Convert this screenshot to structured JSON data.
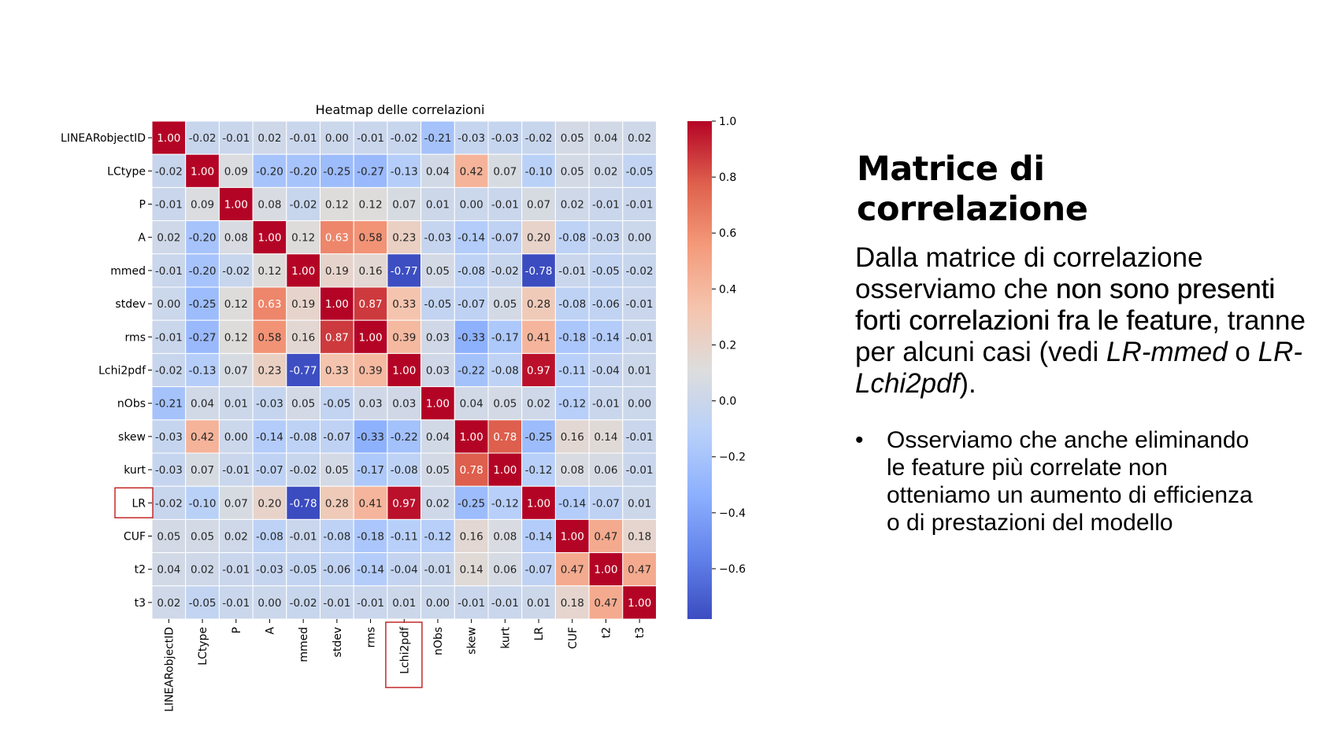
{
  "chart_data": {
    "type": "heatmap",
    "title": "Heatmap delle correlazioni",
    "labels": [
      "LINEARobjectID",
      "LCtype",
      "P",
      "A",
      "mmed",
      "stdev",
      "rms",
      "Lchi2pdf",
      "nObs",
      "skew",
      "kurt",
      "LR",
      "CUF",
      "t2",
      "t3"
    ],
    "matrix": [
      [
        1.0,
        -0.02,
        -0.01,
        0.02,
        -0.01,
        0.0,
        -0.01,
        -0.02,
        -0.21,
        -0.03,
        -0.03,
        -0.02,
        0.05,
        0.04,
        0.02
      ],
      [
        -0.02,
        1.0,
        0.09,
        -0.2,
        -0.2,
        -0.25,
        -0.27,
        -0.13,
        0.04,
        0.42,
        0.07,
        -0.1,
        0.05,
        0.02,
        -0.05
      ],
      [
        -0.01,
        0.09,
        1.0,
        0.08,
        -0.02,
        0.12,
        0.12,
        0.07,
        0.01,
        0.0,
        -0.01,
        0.07,
        0.02,
        -0.01,
        -0.01
      ],
      [
        0.02,
        -0.2,
        0.08,
        1.0,
        0.12,
        0.63,
        0.58,
        0.23,
        -0.03,
        -0.14,
        -0.07,
        0.2,
        -0.08,
        -0.03,
        -0.0
      ],
      [
        -0.01,
        -0.2,
        -0.02,
        0.12,
        1.0,
        0.19,
        0.16,
        -0.77,
        0.05,
        -0.08,
        -0.02,
        -0.78,
        -0.01,
        -0.05,
        -0.02
      ],
      [
        0.0,
        -0.25,
        0.12,
        0.63,
        0.19,
        1.0,
        0.87,
        0.33,
        -0.05,
        -0.07,
        0.05,
        0.28,
        -0.08,
        -0.06,
        -0.01
      ],
      [
        -0.01,
        -0.27,
        0.12,
        0.58,
        0.16,
        0.87,
        1.0,
        0.39,
        0.03,
        -0.33,
        -0.17,
        0.41,
        -0.18,
        -0.14,
        -0.01
      ],
      [
        -0.02,
        -0.13,
        0.07,
        0.23,
        -0.77,
        0.33,
        0.39,
        1.0,
        0.03,
        -0.22,
        -0.08,
        0.97,
        -0.11,
        -0.04,
        0.01
      ],
      [
        -0.21,
        0.04,
        0.01,
        -0.03,
        0.05,
        -0.05,
        0.03,
        0.03,
        1.0,
        0.04,
        0.05,
        0.02,
        -0.12,
        -0.01,
        0.0
      ],
      [
        -0.03,
        0.42,
        0.0,
        -0.14,
        -0.08,
        -0.07,
        -0.33,
        -0.22,
        0.04,
        1.0,
        0.78,
        -0.25,
        0.16,
        0.14,
        -0.01
      ],
      [
        -0.03,
        0.07,
        -0.01,
        -0.07,
        -0.02,
        0.05,
        -0.17,
        -0.08,
        0.05,
        0.78,
        1.0,
        -0.12,
        0.08,
        0.06,
        -0.01
      ],
      [
        -0.02,
        -0.1,
        0.07,
        0.2,
        -0.78,
        0.28,
        0.41,
        0.97,
        0.02,
        -0.25,
        -0.12,
        1.0,
        -0.14,
        -0.07,
        0.01
      ],
      [
        0.05,
        0.05,
        0.02,
        -0.08,
        -0.01,
        -0.08,
        -0.18,
        -0.11,
        -0.12,
        0.16,
        0.08,
        -0.14,
        1.0,
        0.47,
        0.18
      ],
      [
        0.04,
        0.02,
        -0.01,
        -0.03,
        -0.05,
        -0.06,
        -0.14,
        -0.04,
        -0.01,
        0.14,
        0.06,
        -0.07,
        0.47,
        1.0,
        0.47
      ],
      [
        0.02,
        -0.05,
        -0.01,
        -0.0,
        -0.02,
        -0.01,
        -0.01,
        0.01,
        0.0,
        -0.01,
        -0.01,
        0.01,
        0.18,
        0.47,
        1.0
      ]
    ],
    "colorbar": {
      "vmin": -0.78,
      "vmax": 1.0,
      "ticks": [
        1.0,
        0.8,
        0.6,
        0.4,
        0.2,
        0.0,
        -0.2,
        -0.4,
        -0.6
      ],
      "tick_labels": [
        "1.0",
        "0.8",
        "0.6",
        "0.4",
        "0.2",
        "0.0",
        "−0.2",
        "−0.4",
        "−0.6"
      ],
      "colormap": "coolwarm"
    },
    "highlighted_labels": [
      "LR",
      "Lchi2pdf"
    ],
    "highlight_color": "#c62828"
  },
  "side": {
    "title_line1": "Matrice di",
    "title_line2": "correlazione",
    "body_part1": "Dalla matrice di correlazione osserviamo che ",
    "body_bold": "non sono presenti forti correlazioni fra le feature",
    "body_part2": ", tranne per alcuni casi (vedi ",
    "body_em1": "LR-mmed",
    "body_mid": " o ",
    "body_em2": "LR-Lchi2pdf",
    "body_end": ").",
    "bullet_symbol": "•",
    "bullet_text": "Osserviamo che anche eliminando le feature più correlate non otteniamo un aumento di efficienza o di prestazioni del modello"
  }
}
